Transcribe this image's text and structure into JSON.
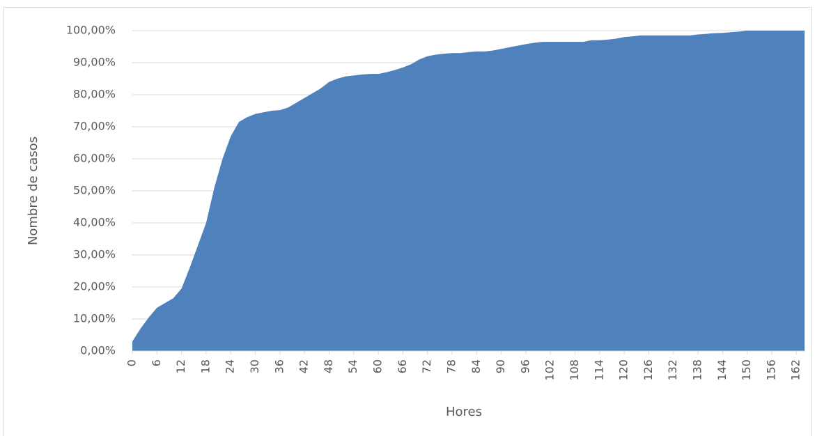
{
  "chart_data": {
    "type": "area",
    "x_label": "Hores",
    "y_label": "Nombre de casos",
    "x": [
      0,
      2,
      4,
      6,
      8,
      10,
      12,
      14,
      16,
      18,
      20,
      22,
      24,
      26,
      28,
      30,
      32,
      34,
      36,
      38,
      40,
      42,
      44,
      46,
      48,
      50,
      52,
      54,
      56,
      58,
      60,
      62,
      64,
      66,
      68,
      70,
      72,
      74,
      76,
      78,
      80,
      82,
      84,
      86,
      88,
      90,
      92,
      94,
      96,
      98,
      100,
      102,
      104,
      106,
      108,
      110,
      112,
      114,
      116,
      118,
      120,
      122,
      124,
      126,
      128,
      130,
      132,
      134,
      136,
      138,
      140,
      142,
      144,
      146,
      148,
      150,
      152,
      154,
      156,
      158,
      160,
      162,
      164
    ],
    "values": [
      3,
      7,
      10.5,
      13.5,
      15,
      16.5,
      19.5,
      26,
      33,
      40,
      51,
      60,
      67,
      71.5,
      73,
      74,
      74.5,
      75,
      75.2,
      76,
      77.5,
      79,
      80.5,
      82,
      84,
      85,
      85.7,
      86,
      86.3,
      86.5,
      86.5,
      87,
      87.7,
      88.5,
      89.5,
      91,
      92,
      92.5,
      92.8,
      93,
      93,
      93.3,
      93.5,
      93.5,
      93.8,
      94.3,
      94.8,
      95.3,
      95.8,
      96.2,
      96.5,
      96.5,
      96.5,
      96.5,
      96.5,
      96.5,
      97,
      97,
      97.2,
      97.5,
      98,
      98.2,
      98.5,
      98.5,
      98.5,
      98.5,
      98.5,
      98.5,
      98.5,
      98.8,
      99,
      99.2,
      99.3,
      99.5,
      99.7,
      100,
      100,
      100,
      100,
      100,
      100,
      100,
      100
    ],
    "color": "#4f81bd",
    "xlim": [
      0,
      164
    ],
    "xticks": [
      0,
      6,
      12,
      18,
      24,
      30,
      36,
      42,
      48,
      54,
      60,
      66,
      72,
      78,
      84,
      90,
      96,
      102,
      108,
      114,
      120,
      126,
      132,
      138,
      144,
      150,
      156,
      162
    ],
    "ylim": [
      0,
      100
    ],
    "yticks": [
      {
        "value": 0,
        "label": "0,00%"
      },
      {
        "value": 10,
        "label": "10,00%"
      },
      {
        "value": 20,
        "label": "20,00%"
      },
      {
        "value": 30,
        "label": "30,00%"
      },
      {
        "value": 40,
        "label": "40,00%"
      },
      {
        "value": 50,
        "label": "50,00%"
      },
      {
        "value": 60,
        "label": "60,00%"
      },
      {
        "value": 70,
        "label": "70,00%"
      },
      {
        "value": 80,
        "label": "80,00%"
      },
      {
        "value": 90,
        "label": "90,00%"
      },
      {
        "value": 100,
        "label": "100,00%"
      }
    ],
    "grid": true
  }
}
